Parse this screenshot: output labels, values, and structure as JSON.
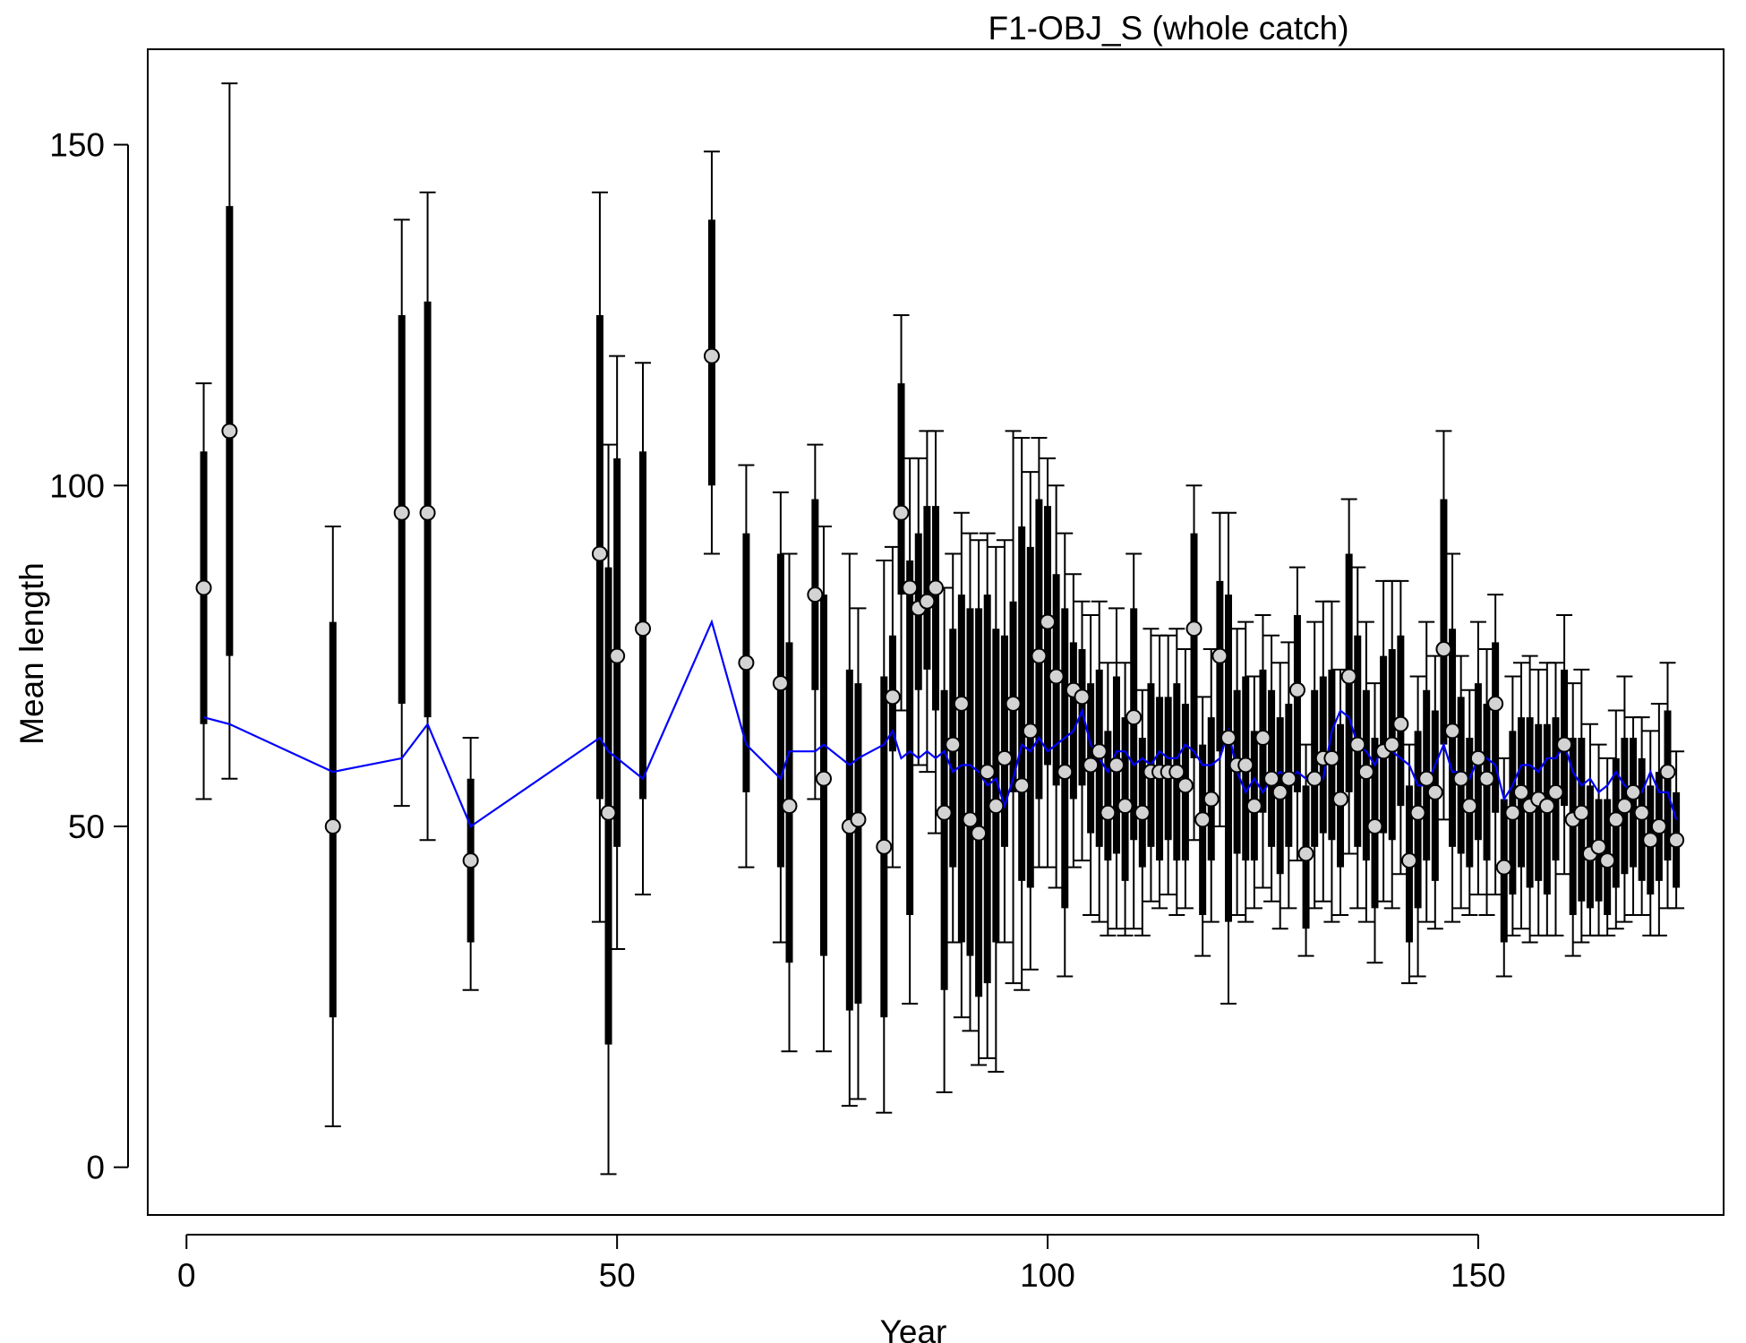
{
  "chart_data": {
    "type": "scatter",
    "title": "F1-OBJ_S (whole catch)",
    "xlabel": "Year",
    "ylabel": "Mean length",
    "xlim": [
      -4.5,
      178.5
    ],
    "ylim": [
      -7,
      164
    ],
    "x_ticks": [
      0,
      50,
      100,
      150
    ],
    "y_ticks": [
      0,
      50,
      100,
      150
    ],
    "x_tick_labels": [
      "0",
      "50",
      "100",
      "150"
    ],
    "y_tick_labels": [
      "0",
      "50",
      "100",
      "150"
    ],
    "grid": false,
    "legend": "none",
    "colors": {
      "observed_point_fill": "#d3d3d3",
      "observed_point_stroke": "#000000",
      "interval": "#000000",
      "expected_line": "#0000ff"
    },
    "series": [
      {
        "kind": "observed",
        "x": [
          2,
          5,
          17,
          25,
          28,
          33,
          48,
          49,
          50,
          53,
          61,
          65,
          69,
          70,
          73,
          74,
          77,
          78,
          81,
          82,
          83,
          84,
          85,
          86,
          87,
          88,
          89,
          90,
          91,
          92,
          93,
          94,
          95,
          96,
          97,
          98,
          99,
          100,
          101,
          102,
          103,
          104,
          105,
          106,
          107,
          108,
          109,
          110,
          111,
          112,
          113,
          114,
          115,
          116,
          117,
          118,
          119,
          120,
          121,
          122,
          123,
          124,
          125,
          126,
          127,
          128,
          129,
          130,
          131,
          132,
          133,
          134,
          135,
          136,
          137,
          138,
          139,
          140,
          141,
          142,
          143,
          144,
          145,
          146,
          147,
          148,
          149,
          150,
          151,
          152,
          153,
          154,
          155,
          156,
          157,
          158,
          159,
          160,
          161,
          162,
          163,
          164,
          165,
          166,
          167,
          168,
          169,
          170,
          171,
          172,
          173
        ],
        "y": [
          85,
          108,
          50,
          96,
          96,
          45,
          90,
          52,
          75,
          79,
          119,
          74,
          71,
          53,
          84,
          57,
          50,
          51,
          47,
          69,
          96,
          85,
          82,
          83,
          85,
          52,
          62,
          68,
          51,
          49,
          58,
          53,
          60,
          68,
          56,
          64,
          75,
          80,
          72,
          58,
          70,
          69,
          59,
          61,
          52,
          59,
          53,
          66,
          52,
          58,
          58,
          58,
          58,
          56,
          79,
          51,
          54,
          75,
          63,
          59,
          59,
          53,
          63,
          57,
          55,
          57,
          70,
          46,
          57,
          60,
          60,
          54,
          72,
          62,
          58,
          50,
          61,
          62,
          65,
          45,
          52,
          57,
          55,
          76,
          64,
          57,
          53,
          60,
          57,
          68,
          44,
          52,
          55,
          53,
          54,
          53,
          55,
          62,
          51,
          52,
          46,
          47,
          45,
          51,
          53,
          55,
          52,
          48,
          50,
          58,
          48
        ],
        "interval_inner": [
          [
            65,
            105
          ],
          [
            75,
            141
          ],
          [
            22,
            80
          ],
          [
            68,
            125
          ],
          [
            66,
            127
          ],
          [
            33,
            57
          ],
          [
            54,
            125
          ],
          [
            18,
            88
          ],
          [
            47,
            104
          ],
          [
            54,
            105
          ],
          [
            100,
            139
          ],
          [
            55,
            93
          ],
          [
            44,
            90
          ],
          [
            30,
            77
          ],
          [
            70,
            98
          ],
          [
            31,
            84
          ],
          [
            23,
            73
          ],
          [
            24,
            71
          ],
          [
            22,
            72
          ],
          [
            61,
            78
          ],
          [
            84,
            115
          ],
          [
            37,
            89
          ],
          [
            70,
            93
          ],
          [
            73,
            97
          ],
          [
            67,
            97
          ],
          [
            26,
            70
          ],
          [
            44,
            79
          ],
          [
            33,
            84
          ],
          [
            31,
            82
          ],
          [
            25,
            82
          ],
          [
            27,
            84
          ],
          [
            33,
            79
          ],
          [
            47,
            78
          ],
          [
            55,
            83
          ],
          [
            42,
            94
          ],
          [
            41,
            91
          ],
          [
            54,
            98
          ],
          [
            59,
            97
          ],
          [
            56,
            87
          ],
          [
            38,
            82
          ],
          [
            54,
            77
          ],
          [
            56,
            76
          ],
          [
            49,
            71
          ],
          [
            47,
            73
          ],
          [
            45,
            64
          ],
          [
            46,
            72
          ],
          [
            42,
            66
          ],
          [
            48,
            82
          ],
          [
            44,
            63
          ],
          [
            47,
            71
          ],
          [
            45,
            69
          ],
          [
            48,
            69
          ],
          [
            45,
            71
          ],
          [
            45,
            68
          ],
          [
            60,
            93
          ],
          [
            37,
            62
          ],
          [
            45,
            66
          ],
          [
            61,
            86
          ],
          [
            36,
            84
          ],
          [
            46,
            70
          ],
          [
            45,
            72
          ],
          [
            45,
            64
          ],
          [
            52,
            73
          ],
          [
            47,
            70
          ],
          [
            43,
            66
          ],
          [
            47,
            68
          ],
          [
            55,
            81
          ],
          [
            35,
            56
          ],
          [
            47,
            70
          ],
          [
            49,
            72
          ],
          [
            48,
            73
          ],
          [
            44,
            65
          ],
          [
            55,
            90
          ],
          [
            47,
            78
          ],
          [
            45,
            70
          ],
          [
            38,
            63
          ],
          [
            49,
            75
          ],
          [
            48,
            76
          ],
          [
            53,
            78
          ],
          [
            33,
            56
          ],
          [
            38,
            64
          ],
          [
            45,
            70
          ],
          [
            42,
            67
          ],
          [
            62,
            98
          ],
          [
            47,
            79
          ],
          [
            46,
            69
          ],
          [
            44,
            63
          ],
          [
            48,
            71
          ],
          [
            45,
            68
          ],
          [
            52,
            77
          ],
          [
            33,
            54
          ],
          [
            40,
            64
          ],
          [
            44,
            66
          ],
          [
            41,
            66
          ],
          [
            42,
            65
          ],
          [
            40,
            65
          ],
          [
            45,
            66
          ],
          [
            53,
            73
          ],
          [
            37,
            63
          ],
          [
            39,
            63
          ],
          [
            38,
            56
          ],
          [
            39,
            54
          ],
          [
            37,
            54
          ],
          [
            41,
            60
          ],
          [
            43,
            63
          ],
          [
            44,
            63
          ],
          [
            42,
            60
          ],
          [
            40,
            56
          ],
          [
            42,
            58
          ],
          [
            45,
            67
          ],
          [
            41,
            55
          ]
        ],
        "interval_outer": [
          [
            54,
            115
          ],
          [
            57,
            159
          ],
          [
            6,
            94
          ],
          [
            53,
            139
          ],
          [
            48,
            143
          ],
          [
            26,
            63
          ],
          [
            36,
            143
          ],
          [
            -1,
            106
          ],
          [
            32,
            119
          ],
          [
            40,
            118
          ],
          [
            90,
            149
          ],
          [
            44,
            103
          ],
          [
            33,
            99
          ],
          [
            17,
            90
          ],
          [
            54,
            106
          ],
          [
            17,
            94
          ],
          [
            9,
            90
          ],
          [
            10,
            82
          ],
          [
            8,
            89
          ],
          [
            44,
            91
          ],
          [
            67,
            125
          ],
          [
            24,
            104
          ],
          [
            59,
            104
          ],
          [
            58,
            108
          ],
          [
            49,
            108
          ],
          [
            11,
            85
          ],
          [
            33,
            90
          ],
          [
            22,
            96
          ],
          [
            20,
            93
          ],
          [
            15,
            92
          ],
          [
            16,
            93
          ],
          [
            14,
            91
          ],
          [
            33,
            92
          ],
          [
            27,
            108
          ],
          [
            26,
            107
          ],
          [
            29,
            102
          ],
          [
            44,
            107
          ],
          [
            44,
            104
          ],
          [
            41,
            100
          ],
          [
            28,
            93
          ],
          [
            44,
            87
          ],
          [
            45,
            83
          ],
          [
            37,
            81
          ],
          [
            36,
            83
          ],
          [
            34,
            74
          ],
          [
            35,
            82
          ],
          [
            34,
            74
          ],
          [
            35,
            90
          ],
          [
            34,
            70
          ],
          [
            39,
            79
          ],
          [
            38,
            78
          ],
          [
            40,
            78
          ],
          [
            37,
            79
          ],
          [
            38,
            76
          ],
          [
            48,
            100
          ],
          [
            31,
            69
          ],
          [
            36,
            76
          ],
          [
            50,
            96
          ],
          [
            24,
            96
          ],
          [
            37,
            79
          ],
          [
            36,
            80
          ],
          [
            38,
            72
          ],
          [
            41,
            81
          ],
          [
            39,
            78
          ],
          [
            35,
            74
          ],
          [
            38,
            77
          ],
          [
            45,
            88
          ],
          [
            31,
            62
          ],
          [
            38,
            80
          ],
          [
            39,
            83
          ],
          [
            36,
            83
          ],
          [
            37,
            73
          ],
          [
            46,
            98
          ],
          [
            38,
            88
          ],
          [
            36,
            80
          ],
          [
            30,
            71
          ],
          [
            39,
            86
          ],
          [
            38,
            86
          ],
          [
            43,
            86
          ],
          [
            27,
            62
          ],
          [
            28,
            72
          ],
          [
            36,
            80
          ],
          [
            35,
            75
          ],
          [
            51,
            108
          ],
          [
            36,
            90
          ],
          [
            38,
            75
          ],
          [
            37,
            70
          ],
          [
            40,
            80
          ],
          [
            37,
            76
          ],
          [
            40,
            84
          ],
          [
            28,
            60
          ],
          [
            34,
            72
          ],
          [
            35,
            74
          ],
          [
            33,
            75
          ],
          [
            34,
            73
          ],
          [
            34,
            74
          ],
          [
            34,
            74
          ],
          [
            43,
            81
          ],
          [
            31,
            71
          ],
          [
            33,
            73
          ],
          [
            34,
            65
          ],
          [
            34,
            62
          ],
          [
            34,
            60
          ],
          [
            35,
            67
          ],
          [
            36,
            72
          ],
          [
            37,
            66
          ],
          [
            37,
            66
          ],
          [
            34,
            64
          ],
          [
            34,
            68
          ],
          [
            38,
            74
          ],
          [
            38,
            61
          ]
        ]
      },
      {
        "kind": "expected",
        "x": [
          2,
          5,
          17,
          25,
          28,
          33,
          48,
          49,
          50,
          53,
          61,
          65,
          69,
          70,
          73,
          74,
          77,
          78,
          81,
          82,
          83,
          84,
          85,
          86,
          87,
          88,
          89,
          90,
          91,
          92,
          93,
          94,
          95,
          96,
          97,
          98,
          99,
          100,
          101,
          102,
          103,
          104,
          105,
          106,
          107,
          108,
          109,
          110,
          111,
          112,
          113,
          114,
          115,
          116,
          117,
          118,
          119,
          120,
          121,
          122,
          123,
          124,
          125,
          126,
          127,
          128,
          129,
          130,
          131,
          132,
          133,
          134,
          135,
          136,
          137,
          138,
          139,
          140,
          141,
          142,
          143,
          144,
          145,
          146,
          147,
          148,
          149,
          150,
          151,
          152,
          153,
          154,
          155,
          156,
          157,
          158,
          159,
          160,
          161,
          162,
          163,
          164,
          165,
          166,
          167,
          168,
          169,
          170,
          171,
          172,
          173
        ],
        "y": [
          66,
          65,
          58,
          60,
          65,
          50,
          63,
          61,
          60,
          57,
          80,
          62,
          57,
          61,
          61,
          62,
          59,
          60,
          62,
          64,
          60,
          61,
          60,
          61,
          60,
          61,
          58,
          59,
          59,
          58,
          56,
          57,
          53,
          57,
          62,
          61,
          63,
          61,
          62,
          63,
          64,
          67,
          62,
          60,
          58,
          61,
          61,
          59,
          60,
          59,
          61,
          60,
          60,
          62,
          61,
          59,
          59,
          60,
          64,
          58,
          55,
          57,
          55,
          57,
          58,
          57,
          58,
          57,
          56,
          57,
          64,
          67,
          66,
          62,
          61,
          59,
          62,
          61,
          60,
          59,
          56,
          56,
          59,
          62,
          58,
          58,
          57,
          60,
          60,
          59,
          54,
          56,
          59,
          59,
          58,
          60,
          60,
          62,
          58,
          56,
          57,
          55,
          56,
          58,
          56,
          55,
          55,
          58,
          55,
          55,
          51
        ]
      }
    ]
  }
}
